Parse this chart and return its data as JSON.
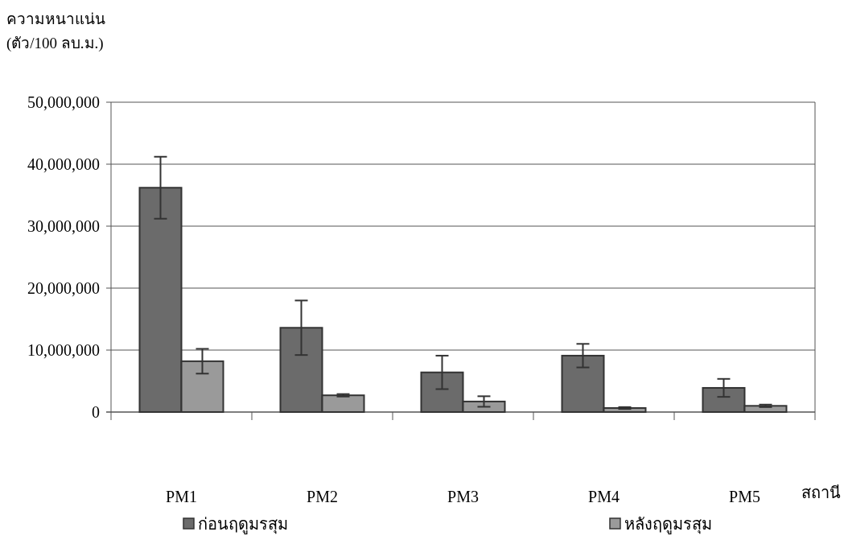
{
  "chart_data": {
    "type": "bar",
    "ylabel": "ความหนาแน่น\n(ตัว/100 ลบ.ม.)",
    "xlabel": "สถานี",
    "categories": [
      "PM1",
      "PM2",
      "PM3",
      "PM4",
      "PM5"
    ],
    "series": [
      {
        "name": "ก่อนฤดูมรสุม",
        "color": "#6b6b6b",
        "values": [
          36200000,
          13600000,
          6400000,
          9100000,
          3900000
        ],
        "errors": [
          5000000,
          4400000,
          2700000,
          1900000,
          1450000
        ]
      },
      {
        "name": "หลังฤดูมรสุม",
        "color": "#9a9a9a",
        "values": [
          8200000,
          2700000,
          1700000,
          650000,
          1000000
        ],
        "errors": [
          2000000,
          200000,
          850000,
          150000,
          200000
        ]
      }
    ],
    "ylim": [
      0,
      50000000
    ],
    "yticks": [
      0,
      {
        "value": 10000000,
        "label": "10,000,000"
      },
      {
        "value": 20000000,
        "label": "20,000,000"
      },
      {
        "value": 30000000,
        "label": "30,000,000"
      },
      {
        "value": 40000000,
        "label": "40,000,000"
      },
      {
        "value": 50000000,
        "label": "50,000,000"
      }
    ],
    "grid": "y",
    "legend": "bottom"
  }
}
